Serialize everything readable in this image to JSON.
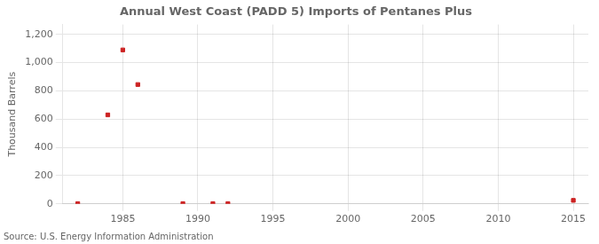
{
  "chart_data": {
    "type": "scatter",
    "title": "Annual West Coast (PADD 5) Imports of Pentanes Plus",
    "ylabel": "Thousand Barrels",
    "source": "Source: U.S. Energy Information Administration",
    "x": [
      1982,
      1984,
      1985,
      1986,
      1989,
      1991,
      1992,
      2015
    ],
    "values": [
      2,
      630,
      1090,
      845,
      2,
      2,
      2,
      25
    ],
    "color": "#cc2222",
    "marker": "square",
    "xlim": [
      1981,
      2016
    ],
    "xticks": [
      1985,
      1990,
      1995,
      2000,
      2005,
      2010,
      2015
    ],
    "ylim": [
      0,
      1270
    ],
    "yticks": [
      0,
      200,
      400,
      600,
      800,
      {
        "value": 1000,
        "label": "1,000"
      },
      {
        "value": 1200,
        "label": "1,200"
      }
    ],
    "grid": true
  }
}
